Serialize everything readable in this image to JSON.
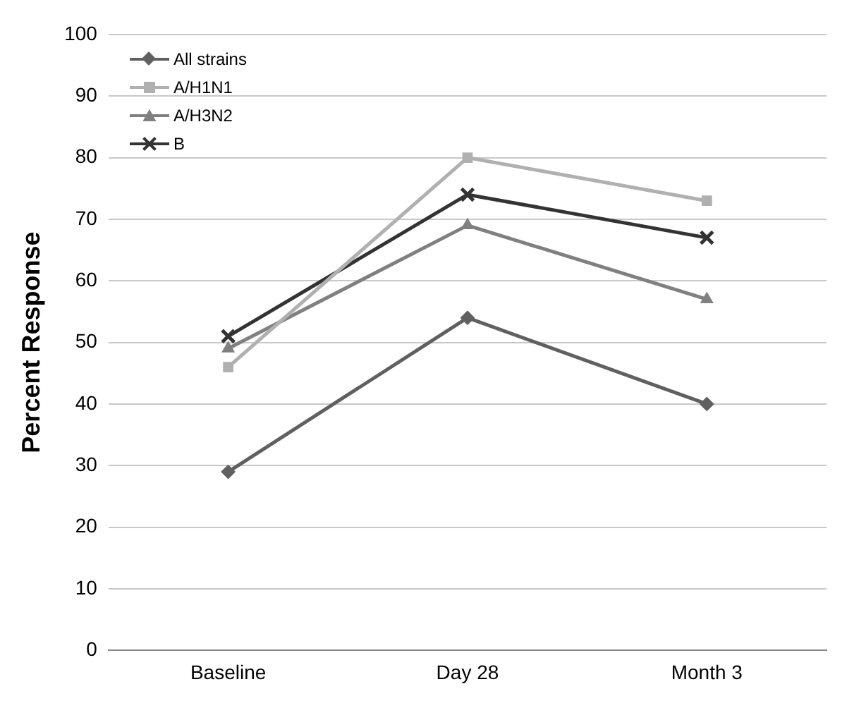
{
  "chart_data": {
    "type": "line",
    "ylabel": "Percent Response",
    "categories": [
      "Baseline",
      "Day 28",
      "Month 3"
    ],
    "series": [
      {
        "name": "All strains",
        "color": "#606060",
        "marker": "diamond",
        "values": [
          29,
          54,
          40
        ]
      },
      {
        "name": "A/H1N1",
        "color": "#b0b0b0",
        "marker": "square",
        "values": [
          46,
          80,
          73
        ]
      },
      {
        "name": "A/H3N2",
        "color": "#808080",
        "marker": "triangle",
        "values": [
          49,
          69,
          57
        ]
      },
      {
        "name": "B",
        "color": "#333333",
        "marker": "cross",
        "values": [
          51,
          74,
          67
        ]
      }
    ],
    "ylim": [
      0,
      100
    ],
    "yticks": [
      0,
      10,
      20,
      30,
      40,
      50,
      60,
      70,
      80,
      90,
      100
    ],
    "grid": "y",
    "legend": "top left"
  }
}
